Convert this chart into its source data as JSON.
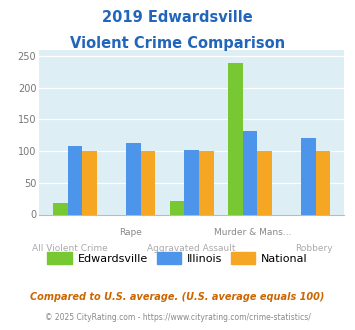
{
  "title_line1": "2019 Edwardsville",
  "title_line2": "Violent Crime Comparison",
  "groups": [
    {
      "edwardsville": 18,
      "illinois": 108,
      "national": 100
    },
    {
      "edwardsville": 0,
      "illinois": 113,
      "national": 100
    },
    {
      "edwardsville": 22,
      "illinois": 101,
      "national": 100
    },
    {
      "edwardsville": 238,
      "illinois": 131,
      "national": 100
    },
    {
      "edwardsville": 0,
      "illinois": 120,
      "national": 100
    }
  ],
  "x_top_labels": [
    "",
    "Rape",
    "",
    "Murder & Mans...",
    ""
  ],
  "x_bot_labels": [
    "All Violent Crime",
    "",
    "Aggravated Assault",
    "",
    "Robbery"
  ],
  "color_edwardsville": "#77c832",
  "color_illinois": "#4d94eb",
  "color_national": "#f5a623",
  "ylim": [
    0,
    260
  ],
  "yticks": [
    0,
    50,
    100,
    150,
    200,
    250
  ],
  "title_color": "#2266bb",
  "axis_bg_color": "#ddeef4",
  "subtitle_color": "#cc6600",
  "footer_color": "#888888",
  "legend_labels": [
    "Edwardsville",
    "Illinois",
    "National"
  ],
  "subtitle_text": "Compared to U.S. average. (U.S. average equals 100)",
  "footer_text": "© 2025 CityRating.com - https://www.cityrating.com/crime-statistics/"
}
